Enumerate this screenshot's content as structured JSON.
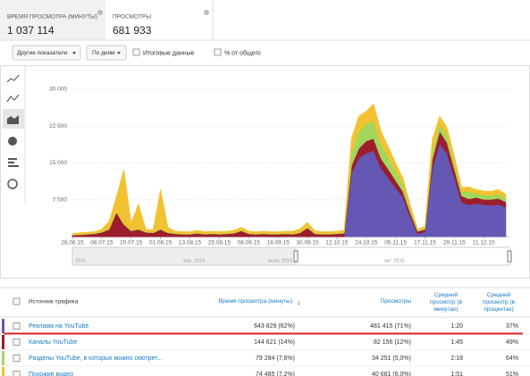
{
  "metrics": [
    {
      "label": "ВРЕМЯ ПРОСМОТРА (МИНУТЫ)",
      "value": "1 037 114"
    },
    {
      "label": "ПРОСМОТРЫ",
      "value": "681 933"
    }
  ],
  "controls": {
    "metric_dropdown": "Другие показатели",
    "period_dropdown": "По дням",
    "totals_checkbox": "Итоговые данные",
    "percent_checkbox": "% от общего"
  },
  "chart_data": {
    "type": "area",
    "stacked": true,
    "categories": [
      "28.06.15",
      null,
      null,
      null,
      "08.07.15",
      null,
      null,
      null,
      "20.07.15",
      null,
      null,
      null,
      "01.08.15",
      null,
      null,
      null,
      "13.08.15",
      null,
      null,
      null,
      "25.08.15",
      null,
      null,
      null,
      "08.09.15",
      null,
      null,
      null,
      "18.09.15",
      null,
      null,
      null,
      "30.09.15",
      null,
      null,
      null,
      "12.10.15",
      null,
      null,
      null,
      "24.10.15",
      null,
      null,
      null,
      "05.11.15",
      null,
      null,
      null,
      "17.11.15",
      null,
      null,
      null,
      "29.11.15",
      null,
      null,
      null,
      "11.12.15",
      null,
      null,
      null
    ],
    "series": [
      {
        "color": "#6458b4",
        "values": [
          0,
          0,
          0,
          0,
          0,
          0,
          0,
          0,
          0,
          0,
          0,
          0,
          0,
          0,
          0,
          0,
          0,
          0,
          0,
          0,
          0,
          0,
          0,
          0,
          0,
          0,
          0,
          0,
          0,
          0,
          0,
          0,
          0,
          0,
          0,
          0,
          0,
          0,
          13000,
          16000,
          17000,
          17500,
          14000,
          12000,
          10000,
          8000,
          4000,
          600,
          1000,
          14000,
          19000,
          17000,
          12000,
          7000,
          6500,
          6800,
          6500,
          6400,
          6600,
          6000
        ]
      },
      {
        "color": "#9c1e2c",
        "values": [
          300,
          400,
          500,
          600,
          900,
          1500,
          5000,
          2500,
          1200,
          1500,
          900,
          800,
          1500,
          800,
          600,
          500,
          500,
          700,
          500,
          600,
          500,
          600,
          700,
          1200,
          600,
          500,
          600,
          500,
          500,
          600,
          500,
          800,
          1800,
          600,
          500,
          500,
          600,
          700,
          1500,
          2000,
          2500,
          2500,
          2000,
          1800,
          1500,
          1200,
          900,
          500,
          500,
          1800,
          2500,
          2200,
          1800,
          1300,
          1200,
          1200,
          1100,
          1200,
          1200,
          1100
        ]
      },
      {
        "color": "#a3d65c",
        "values": [
          100,
          100,
          100,
          100,
          100,
          100,
          100,
          100,
          100,
          100,
          100,
          100,
          100,
          100,
          100,
          100,
          100,
          100,
          100,
          100,
          100,
          100,
          100,
          100,
          100,
          100,
          100,
          100,
          100,
          100,
          100,
          100,
          100,
          100,
          100,
          100,
          100,
          100,
          2500,
          3500,
          3500,
          3500,
          3000,
          2500,
          2000,
          1500,
          800,
          200,
          300,
          1500,
          1500,
          1500,
          1200,
          900,
          1500,
          800,
          900,
          800,
          900,
          800
        ]
      },
      {
        "color": "#f2c232",
        "values": [
          200,
          300,
          300,
          300,
          500,
          1500,
          3000,
          11000,
          1500,
          5000,
          500,
          500,
          8000,
          1000,
          400,
          400,
          400,
          500,
          400,
          400,
          400,
          400,
          500,
          600,
          400,
          400,
          400,
          400,
          400,
          400,
          500,
          700,
          1000,
          500,
          400,
          400,
          400,
          500,
          3000,
          3000,
          2500,
          3500,
          2500,
          2000,
          1500,
          1200,
          800,
          200,
          300,
          2500,
          1500,
          1500,
          1300,
          800,
          900,
          800,
          800,
          800,
          900,
          700
        ]
      }
    ],
    "ylim": [
      0,
      30000
    ],
    "yticks": [
      {
        "value": 7500,
        "label": "7 500"
      },
      {
        "value": 15000,
        "label": "15 000"
      },
      {
        "value": 22500,
        "label": "22 500"
      },
      {
        "value": 30000,
        "label": "30 000"
      }
    ],
    "grid": true
  },
  "navigator": {
    "labels": [
      "2015",
      "апр. 2015",
      "июль 2015",
      "окт. 2015"
    ]
  },
  "table": {
    "header": [
      "Источник трафика",
      "Время просмотра (минуты)",
      "Просмотры",
      "Средний просмотр (в минутах)",
      "Средний просмотр (в процентах)"
    ],
    "rows": [
      [
        "Реклама на YouTube",
        "643 829 (62%)",
        "481 415 (71%)",
        "1:20",
        "37%"
      ],
      [
        "Каналы YouTube",
        "144 621 (14%)",
        "82 156 (12%)",
        "1:45",
        "49%"
      ],
      [
        "Разделы YouTube, в которых можно смотрет...",
        "79 284 (7,6%)",
        "34 251 (5,0%)",
        "2:18",
        "64%"
      ],
      [
        "Похожие видео",
        "74 485 (7,2%)",
        "40 661 (6,0%)",
        "1:51",
        "51%"
      ]
    ]
  }
}
